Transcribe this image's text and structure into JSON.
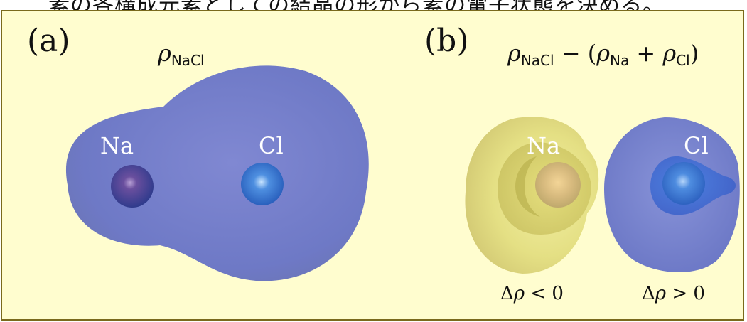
{
  "caption": "素の各構成元素としての結晶の形から素の電子状態を決める。",
  "panel_a": {
    "label": "(a)",
    "rho": "ρ",
    "sub": "NaCl",
    "atoms": {
      "left": "Na",
      "right": "Cl"
    }
  },
  "panel_b": {
    "label": "(b)",
    "rho1": "ρ",
    "sub1": "NaCl",
    "minus": " − (",
    "rho2": "ρ",
    "sub2": "Na",
    "plus": " + ",
    "rho3": "ρ",
    "sub3": "Cl",
    "close": ")",
    "atoms": {
      "left": "Na",
      "right": "Cl"
    },
    "delta_left": {
      "delta": "Δ",
      "rho": "ρ",
      "rel": " < 0"
    },
    "delta_right": {
      "delta": "Δ",
      "rho": "ρ",
      "rel": " > 0"
    }
  },
  "colors": {
    "frame_fill": "#fffdcf",
    "frame_border": "#7a6a1c",
    "blue_surface": "#6f7bc9",
    "yellow_surface": "#e8e278"
  }
}
